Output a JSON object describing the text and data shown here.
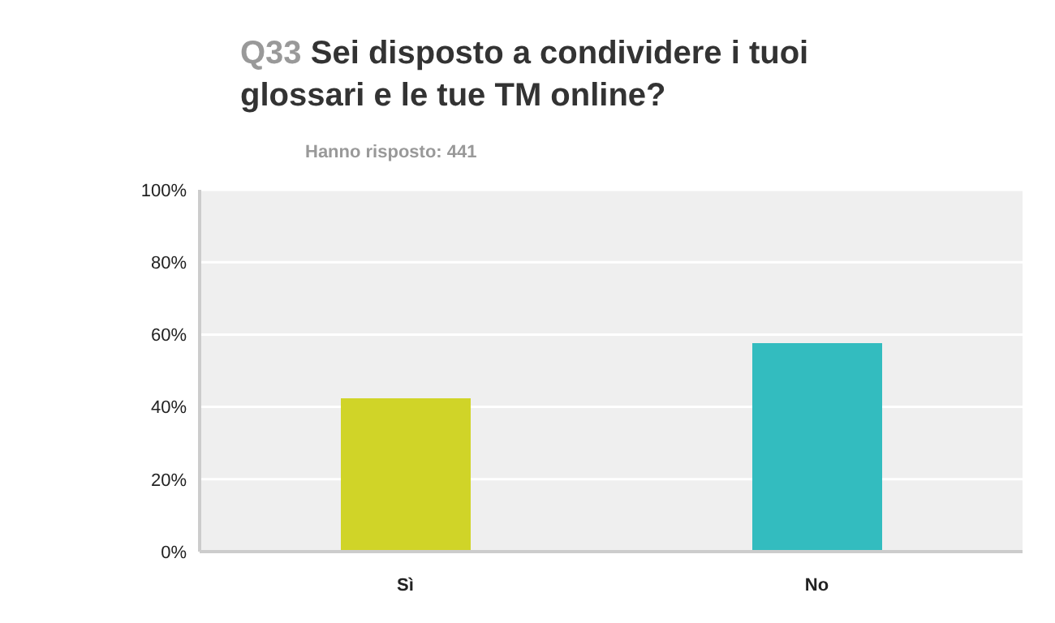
{
  "chart_data": {
    "type": "bar",
    "title": "Q33 Sei disposto a condividere i tuoi glossari e le tue TM online?",
    "subtitle": "Hanno risposto: 441",
    "categories": [
      "Sì",
      "No"
    ],
    "values": [
      42.4,
      57.6
    ],
    "colors": [
      "#d0d428",
      "#33bcbf"
    ],
    "ylim": [
      0,
      100
    ],
    "yticks": [
      {
        "value": 0,
        "label": "0%"
      },
      {
        "value": 20,
        "label": "20%"
      },
      {
        "value": 40,
        "label": "40%"
      },
      {
        "value": 60,
        "label": "60%"
      },
      {
        "value": 80,
        "label": "80%"
      },
      {
        "value": 100,
        "label": "100%"
      }
    ],
    "grid": "y"
  }
}
